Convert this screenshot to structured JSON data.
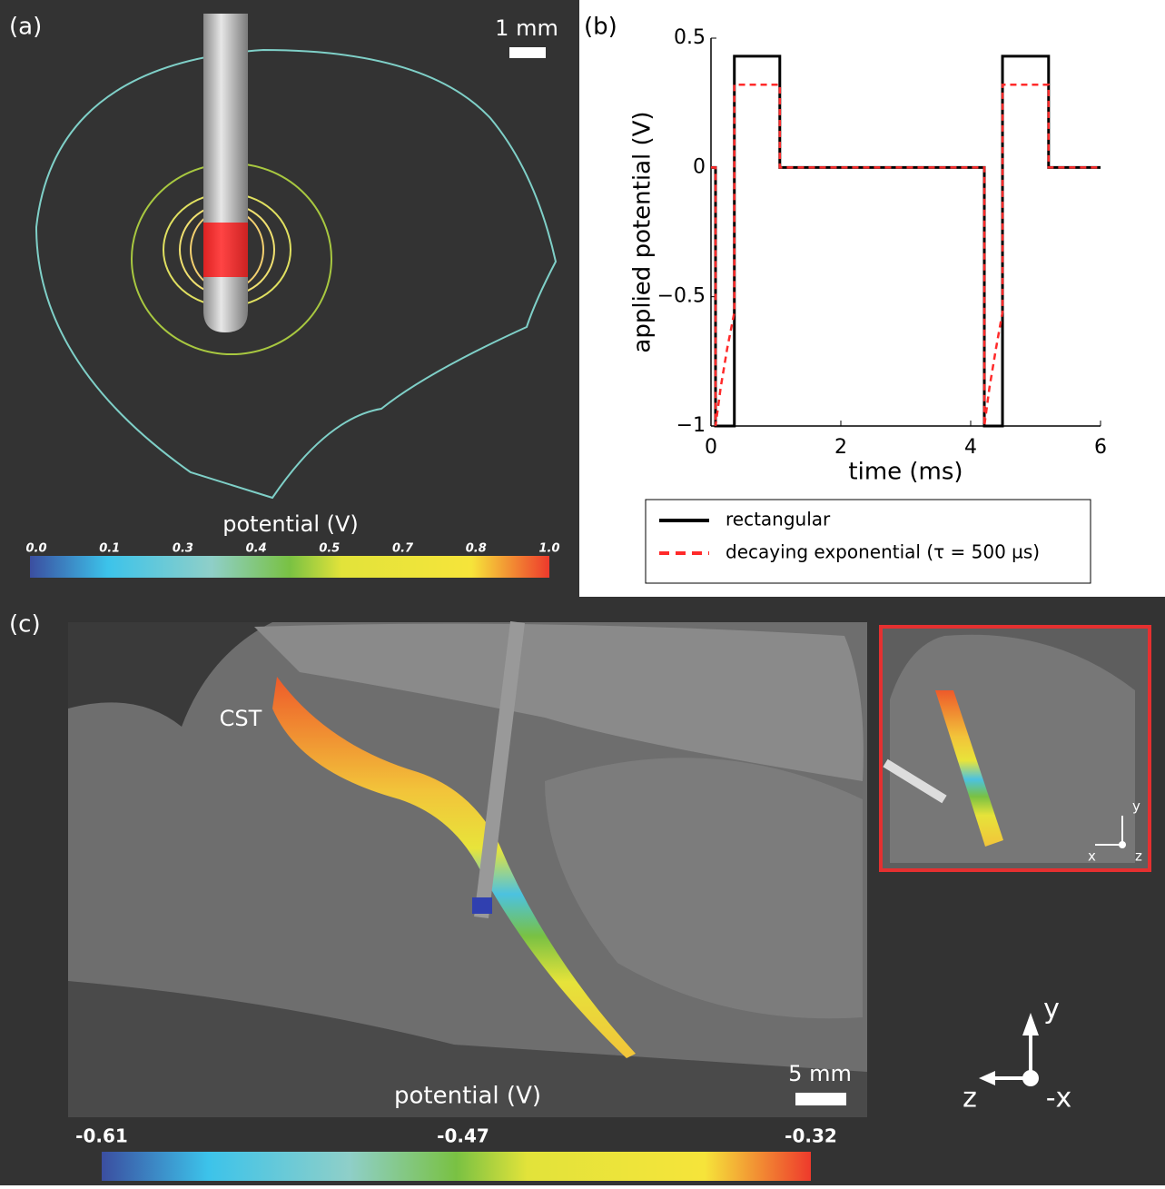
{
  "panel_a": {
    "label": "(a)",
    "scale_bar": "1 mm",
    "colorbar_title": "potential (V)",
    "colorbar_labels": [
      "0.0",
      "0.1",
      "0.3",
      "0.4",
      "0.5",
      "0.7",
      "0.8",
      "1.0"
    ]
  },
  "chart_data": {
    "type": "line",
    "panel_label": "(b)",
    "xlabel": "time (ms)",
    "ylabel": "applied potential (V)",
    "xlim": [
      0,
      6
    ],
    "ylim": [
      -1,
      0.5
    ],
    "xticks": [
      0,
      2,
      4,
      6
    ],
    "yticks": [
      {
        "value": -1,
        "label": "−1"
      },
      {
        "value": -0.5,
        "label": "−0.5"
      },
      0,
      0.5
    ],
    "legend": "below",
    "series": [
      {
        "name": "rectangular",
        "color": "#000000",
        "linestyle": "solid",
        "x": [
          0,
          0.07,
          0.07,
          0.36,
          0.36,
          1.06,
          1.06,
          4.21,
          4.21,
          4.49,
          4.49,
          5.2,
          5.2,
          6
        ],
        "values": [
          0,
          0,
          -1,
          -1,
          0.43,
          0.43,
          0,
          0,
          -1,
          -1,
          0.43,
          0.43,
          0,
          0
        ]
      },
      {
        "name": "decaying exponential (τ = 500 µs)",
        "color": "#ff2a2a",
        "linestyle": "dashed",
        "x": [
          0,
          0.07,
          0.07,
          0.15,
          0.25,
          0.36,
          0.36,
          1.06,
          1.06,
          4.21,
          4.21,
          4.29,
          4.39,
          4.49,
          4.49,
          5.2,
          5.2,
          6
        ],
        "values": [
          0,
          0,
          -1,
          -0.85,
          -0.7,
          -0.56,
          0.32,
          0.32,
          0,
          0,
          -1,
          -0.85,
          -0.7,
          -0.56,
          0.32,
          0.32,
          0,
          0
        ]
      }
    ]
  },
  "panel_c": {
    "label": "(c)",
    "tract_label": "CST",
    "scale_bar": "5 mm",
    "colorbar_title": "potential (V)",
    "colorbar_labels": [
      "-0.61",
      "-0.47",
      "-0.32"
    ],
    "axes_labels": [
      "y",
      "z",
      "-x"
    ],
    "inset_axes_labels": [
      "y",
      "x",
      "z"
    ]
  }
}
